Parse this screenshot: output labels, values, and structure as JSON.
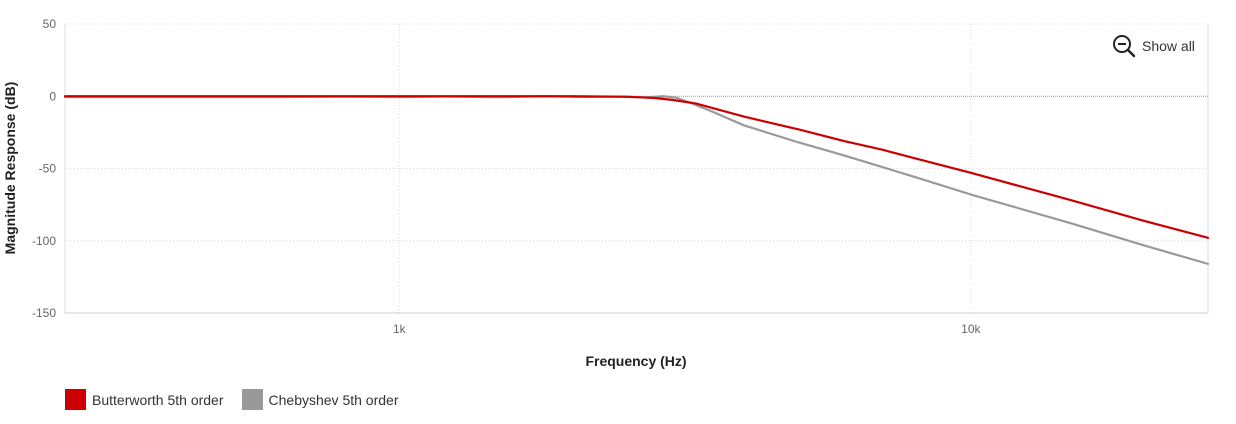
{
  "chart_data": {
    "type": "line",
    "xlabel": "Frequency (Hz)",
    "ylabel": "Magnitude Response (dB)",
    "x_scale": "log",
    "xlim": [
      260,
      26000
    ],
    "ylim": [
      -150,
      50
    ],
    "x_ticks": [
      {
        "value": 1000,
        "label": "1k"
      },
      {
        "value": 10000,
        "label": "10k"
      }
    ],
    "y_ticks": [
      50,
      0,
      -50,
      -100,
      -150
    ],
    "grid": true,
    "legend_position": "bottom-left",
    "series": [
      {
        "name": "Butterworth 5th order",
        "color": "#cc0000",
        "points": [
          [
            260,
            0
          ],
          [
            500,
            0
          ],
          [
            1000,
            0
          ],
          [
            1500,
            0
          ],
          [
            2000,
            0
          ],
          [
            2500,
            -0.3
          ],
          [
            2800,
            -1.2
          ],
          [
            3000,
            -2.5
          ],
          [
            3300,
            -5
          ],
          [
            3600,
            -9
          ],
          [
            4000,
            -14
          ],
          [
            5000,
            -23
          ],
          [
            6000,
            -31
          ],
          [
            7000,
            -37
          ],
          [
            8000,
            -43
          ],
          [
            10000,
            -53
          ],
          [
            15000,
            -72
          ],
          [
            20000,
            -86
          ],
          [
            26000,
            -98
          ]
        ]
      },
      {
        "name": "Chebyshev 5th order",
        "color": "#999999",
        "points": [
          [
            260,
            -0.5
          ],
          [
            400,
            -0.5
          ],
          [
            600,
            -0.5
          ],
          [
            800,
            -0.3
          ],
          [
            1000,
            -0.5
          ],
          [
            1200,
            -0.2
          ],
          [
            1500,
            -0.6
          ],
          [
            1800,
            0
          ],
          [
            2100,
            -0.5
          ],
          [
            2400,
            -0.3
          ],
          [
            2700,
            -0.8
          ],
          [
            2900,
            0
          ],
          [
            3050,
            -1
          ],
          [
            3200,
            -4
          ],
          [
            3500,
            -10
          ],
          [
            4000,
            -20
          ],
          [
            5000,
            -32
          ],
          [
            6000,
            -41
          ],
          [
            7000,
            -49
          ],
          [
            8000,
            -56
          ],
          [
            10000,
            -68
          ],
          [
            15000,
            -88
          ],
          [
            20000,
            -103
          ],
          [
            26000,
            -116
          ]
        ]
      }
    ]
  },
  "controls": {
    "show_all_label": "Show all",
    "show_all_icon": "zoom-out-icon"
  }
}
